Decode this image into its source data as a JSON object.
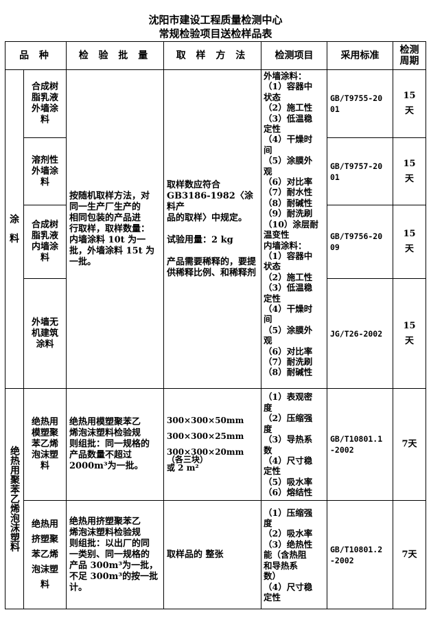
{
  "title": "沈阳市建设工程质量检测中心",
  "subtitle": "常规检验项目送检样品表",
  "headers": {
    "variety": "品  种",
    "batch": "检 验 批 量",
    "sampling": "取 样 方 法",
    "items": "检测项目",
    "standard": "采用标准",
    "period": "检测\n周期"
  },
  "coatings": {
    "category": "涂\n\n料",
    "products": [
      {
        "name": "合成树\n脂乳液\n外墙涂\n料",
        "standard": "GB/T9755-20\n01",
        "period": "15\n天"
      },
      {
        "name": "溶剂性\n外墙涂\n料",
        "standard": "GB/T9757-20\n01",
        "period": "15\n天"
      },
      {
        "name": "合成树\n脂乳液\n内墙涂\n料",
        "standard": "GB/T9756-20\n09",
        "period": "15\n天"
      },
      {
        "name": "外墙无\n机建筑\n涂料",
        "standard": "JG/T26-2002",
        "period": "15\n天"
      }
    ],
    "batch": "按随机取样方法，对\n同一生产厂生产的\n相同包装的产品进\n行取样，取样数量：\n内墙涂料 10t 为一\n批，外墙涂料 15t 为\n一批。",
    "sampling": "取样数应符合\nGB3186-1982〈涂料产\n品的取样〉中规定。\n\n试验用量：2 kg\n\n产品需要稀释的，要提\n供稀释比例、和稀释剂",
    "items": "外墙涂料：\n（1）容器中\n状态\n（2）施工性\n（3）低温稳\n定性\n（4）干燥时\n间\n（5）涂膜外\n观\n（6）对比率\n（7）耐水性\n（8）耐碱性\n（9）耐洗刷\n（10）涂层耐\n    温变性\n内墙涂料：\n（1）容器中\n状态\n（2）施工性\n（3）低温稳\n定性\n（4）干燥时\n间\n（5）涂膜外\n观\n（6）对比率\n（7）耐洗刷\n（8）耐碱性"
  },
  "eps": {
    "category": "绝热用聚苯乙烯泡沫塑料",
    "products": [
      {
        "name": "绝热用\n模塑聚\n苯乙烯\n泡沫塑\n料",
        "batch": "绝热用模塑聚苯乙\n烯泡沫塑料检验规\n则组批：同一规格的\n产品数量不超过\n2000m³为一批。",
        "sampling": "300×300×50mm\n\n300×300×25mm\n\n300×300×20mm\n（各三块）\n或 2 m²",
        "items": "（1）表观密\n度\n（2）压缩强\n度\n（3）导热系\n数\n（4）尺寸稳\n定性\n（5）吸水率\n（6）熔结性",
        "standard": "GB/T10801.1\n-2002",
        "period": "7天"
      },
      {
        "name": "绝热用\n挤塑聚\n苯乙烯\n泡沫塑\n料",
        "batch": "绝热用挤塑聚苯乙\n烯泡沫塑料检验规\n则组批：以出厂的同\n一类别、同一规格的\n产品 300m³为一批，\n不足 300m³的按一批\n计。",
        "sampling": "取样品的 整张",
        "items": "（1）压缩强\n度\n（2）吸水率\n（3）绝热性\n能（含热阻\n和导热系\n数）\n（4）尺寸稳\n定性",
        "standard": "GB/T10801.2\n-2002",
        "period": "7天"
      }
    ]
  }
}
